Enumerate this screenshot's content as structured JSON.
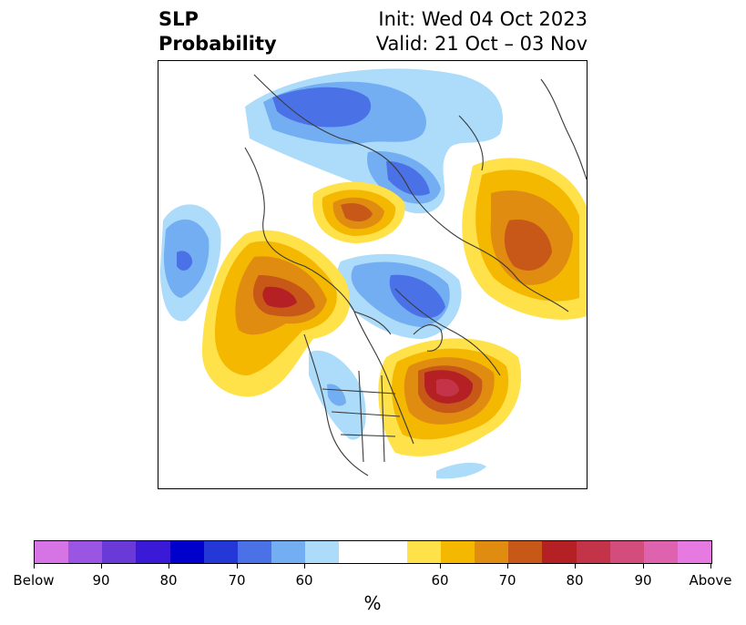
{
  "title": {
    "left_line1": "SLP",
    "left_line2": "Probability",
    "right_line1": "Init: Wed 04 Oct 2023",
    "right_line2": "Valid: 21 Oct – 03 Nov"
  },
  "colorbar": {
    "colors": [
      "#d674e6",
      "#9a56e2",
      "#6a3ad9",
      "#3a1ad6",
      "#0000cc",
      "#2438d8",
      "#4a72e6",
      "#74aef2",
      "#acdcfa",
      "#ffffff",
      "#ffffff",
      "#ffe14a",
      "#f5b800",
      "#e08c10",
      "#c75818",
      "#b42024",
      "#c43448",
      "#d24c7c",
      "#de62ae",
      "#e67ae0"
    ],
    "ticks": [
      {
        "label": "Below"
      },
      {
        "label": "90"
      },
      {
        "label": "80"
      },
      {
        "label": "70"
      },
      {
        "label": "60"
      },
      {
        "label": "60"
      },
      {
        "label": "70"
      },
      {
        "label": "80"
      },
      {
        "label": "90"
      },
      {
        "label": "Above"
      }
    ],
    "units": "%"
  }
}
